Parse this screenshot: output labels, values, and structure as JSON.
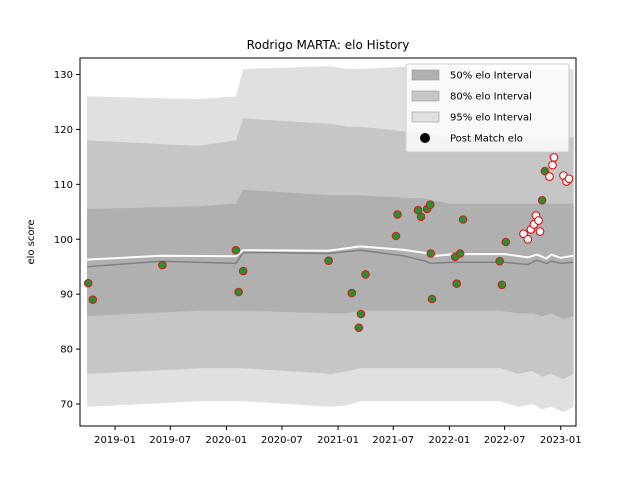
{
  "chart_data": {
    "type": "line",
    "title": "Rodrigo MARTA: elo History",
    "xlabel": "",
    "ylabel": "elo score",
    "ylim": [
      66,
      133
    ],
    "xlim": [
      "2018-09-08",
      "2023-02-20"
    ],
    "x_ticks": [
      {
        "date": "2019-01-01",
        "label": "2019-01"
      },
      {
        "date": "2019-07-01",
        "label": "2019-07"
      },
      {
        "date": "2020-01-01",
        "label": "2020-01"
      },
      {
        "date": "2020-07-01",
        "label": "2020-07"
      },
      {
        "date": "2021-01-01",
        "label": "2021-01"
      },
      {
        "date": "2021-07-01",
        "label": "2021-07"
      },
      {
        "date": "2022-01-01",
        "label": "2022-01"
      },
      {
        "date": "2022-07-01",
        "label": "2022-07"
      },
      {
        "date": "2023-01-01",
        "label": "2023-01"
      }
    ],
    "y_ticks": [
      70,
      80,
      90,
      100,
      110,
      120,
      130
    ],
    "legend": {
      "placement": "top-right",
      "entries": [
        {
          "label": "50% elo Interval",
          "color": "#b0b0b0"
        },
        {
          "label": "80% elo Interval",
          "color": "#c6c6c6"
        },
        {
          "label": "95% elo Interval",
          "color": "#e0e0e0"
        },
        {
          "label": "Post Match elo",
          "color": "#000000"
        }
      ]
    },
    "colors": {
      "band50": "#b0b0b0",
      "band80": "#c6c6c6",
      "band95": "#e0e0e0",
      "median_line": "#808080",
      "mean_line": "#ffffff",
      "point_fill_past": "#2e8b2e",
      "point_edge_past": "#cc2222",
      "point_fill_recent": "#ffffff",
      "point_edge_recent": "#dd0000"
    },
    "bands": {
      "x": [
        "2018-10-01",
        "2019-10-01",
        "2020-02-01",
        "2020-02-25",
        "2020-12-10",
        "2021-02-01",
        "2021-03-15",
        "2021-09-01",
        "2021-10-01",
        "2022-01-01",
        "2022-03-15",
        "2022-06-15",
        "2022-08-15",
        "2022-10-01",
        "2022-11-01",
        "2022-12-01",
        "2023-01-10",
        "2023-02-12"
      ],
      "band95_low": [
        69.5,
        70.5,
        70.5,
        70.5,
        69.5,
        69.8,
        70.5,
        70.5,
        70.5,
        70.5,
        70.5,
        70.5,
        69.5,
        70.0,
        69.0,
        69.5,
        68.5,
        69.5
      ],
      "band95_high": [
        126.0,
        125.5,
        126.0,
        131.0,
        131.5,
        131.0,
        131.0,
        131.5,
        131.5,
        131.5,
        131.0,
        131.0,
        131.0,
        131.0,
        131.0,
        131.0,
        131.0,
        131.0
      ],
      "band80_low": [
        75.5,
        76.5,
        76.5,
        76.5,
        75.5,
        76.0,
        76.5,
        76.5,
        76.5,
        76.5,
        76.5,
        76.5,
        75.5,
        76.0,
        75.0,
        75.5,
        74.5,
        75.5
      ],
      "band80_high": [
        118.0,
        117.0,
        118.0,
        122.0,
        121.0,
        120.5,
        120.5,
        119.5,
        119.5,
        118.5,
        118.5,
        118.5,
        118.5,
        118.5,
        118.5,
        118.5,
        118.5,
        118.5
      ],
      "band50_low": [
        86.0,
        87.0,
        87.0,
        87.0,
        86.5,
        86.5,
        87.0,
        87.0,
        87.0,
        87.0,
        87.0,
        87.0,
        86.5,
        86.5,
        86.0,
        86.5,
        85.5,
        86.0
      ],
      "band50_high": [
        105.5,
        106.0,
        106.5,
        109.0,
        108.0,
        108.0,
        108.0,
        107.5,
        107.5,
        106.5,
        106.5,
        106.5,
        106.5,
        106.5,
        106.5,
        106.5,
        106.5,
        106.5
      ]
    },
    "series": [
      {
        "name": "Post Match elo",
        "points": [
          {
            "x": "2018-10-05",
            "y": 92.0,
            "state": "past"
          },
          {
            "x": "2018-10-20",
            "y": 89.0,
            "state": "past"
          },
          {
            "x": "2019-06-05",
            "y": 95.3,
            "state": "past"
          },
          {
            "x": "2020-02-01",
            "y": 98.0,
            "state": "past"
          },
          {
            "x": "2020-02-10",
            "y": 90.4,
            "state": "past"
          },
          {
            "x": "2020-02-25",
            "y": 94.2,
            "state": "past"
          },
          {
            "x": "2020-12-01",
            "y": 96.1,
            "state": "past"
          },
          {
            "x": "2021-02-15",
            "y": 90.2,
            "state": "past"
          },
          {
            "x": "2021-03-10",
            "y": 83.9,
            "state": "past"
          },
          {
            "x": "2021-03-17",
            "y": 86.4,
            "state": "past"
          },
          {
            "x": "2021-04-01",
            "y": 93.6,
            "state": "past"
          },
          {
            "x": "2021-07-10",
            "y": 100.6,
            "state": "past"
          },
          {
            "x": "2021-07-15",
            "y": 104.5,
            "state": "past"
          },
          {
            "x": "2021-09-20",
            "y": 105.3,
            "state": "past"
          },
          {
            "x": "2021-09-30",
            "y": 104.1,
            "state": "past"
          },
          {
            "x": "2021-10-20",
            "y": 105.5,
            "state": "past"
          },
          {
            "x": "2021-10-30",
            "y": 106.3,
            "state": "past"
          },
          {
            "x": "2021-11-01",
            "y": 97.4,
            "state": "past"
          },
          {
            "x": "2021-11-05",
            "y": 89.1,
            "state": "past"
          },
          {
            "x": "2022-01-20",
            "y": 96.8,
            "state": "past"
          },
          {
            "x": "2022-01-25",
            "y": 91.9,
            "state": "past"
          },
          {
            "x": "2022-02-05",
            "y": 97.4,
            "state": "past"
          },
          {
            "x": "2022-02-15",
            "y": 103.6,
            "state": "past"
          },
          {
            "x": "2022-06-15",
            "y": 96.0,
            "state": "past"
          },
          {
            "x": "2022-06-22",
            "y": 91.7,
            "state": "past"
          },
          {
            "x": "2022-07-05",
            "y": 99.5,
            "state": "past"
          },
          {
            "x": "2022-09-01",
            "y": 101.0,
            "state": "recent"
          },
          {
            "x": "2022-09-15",
            "y": 100.0,
            "state": "recent"
          },
          {
            "x": "2022-09-25",
            "y": 101.8,
            "state": "recent"
          },
          {
            "x": "2022-10-05",
            "y": 102.7,
            "state": "recent"
          },
          {
            "x": "2022-10-12",
            "y": 104.3,
            "state": "recent"
          },
          {
            "x": "2022-10-20",
            "y": 103.4,
            "state": "recent"
          },
          {
            "x": "2022-10-25",
            "y": 101.4,
            "state": "recent"
          },
          {
            "x": "2022-11-01",
            "y": 107.1,
            "state": "past"
          },
          {
            "x": "2022-11-10",
            "y": 112.4,
            "state": "past"
          },
          {
            "x": "2022-11-25",
            "y": 111.4,
            "state": "recent"
          },
          {
            "x": "2022-12-05",
            "y": 113.5,
            "state": "recent"
          },
          {
            "x": "2022-12-10",
            "y": 114.9,
            "state": "recent"
          },
          {
            "x": "2023-01-10",
            "y": 111.6,
            "state": "recent"
          },
          {
            "x": "2023-01-20",
            "y": 110.5,
            "state": "recent"
          },
          {
            "x": "2023-01-28",
            "y": 111.0,
            "state": "recent"
          }
        ]
      },
      {
        "role": "median",
        "x": [
          "2018-10-01",
          "2019-06-01",
          "2020-02-01",
          "2020-02-25",
          "2020-12-01",
          "2021-03-15",
          "2021-08-01",
          "2021-10-15",
          "2021-11-01",
          "2022-01-15",
          "2022-07-01",
          "2022-09-15",
          "2022-10-15",
          "2022-11-15",
          "2022-12-01",
          "2023-01-01",
          "2023-02-12"
        ],
        "y": [
          95.0,
          96.0,
          95.6,
          97.6,
          97.4,
          98.0,
          97.0,
          96.0,
          95.6,
          95.8,
          95.8,
          95.4,
          96.2,
          95.6,
          96.0,
          95.6,
          95.8
        ]
      },
      {
        "role": "mean",
        "x": [
          "2018-10-01",
          "2019-06-01",
          "2020-02-01",
          "2020-02-25",
          "2020-12-01",
          "2021-03-15",
          "2021-08-01",
          "2021-10-15",
          "2021-11-01",
          "2022-01-15",
          "2022-07-01",
          "2022-09-15",
          "2022-10-15",
          "2022-11-15",
          "2022-12-01",
          "2023-01-01",
          "2023-02-12"
        ],
        "y": [
          96.3,
          97.0,
          96.9,
          98.0,
          97.9,
          98.7,
          98.1,
          97.5,
          96.9,
          97.3,
          97.3,
          96.7,
          97.2,
          96.5,
          97.2,
          96.6,
          97.0
        ]
      }
    ]
  }
}
